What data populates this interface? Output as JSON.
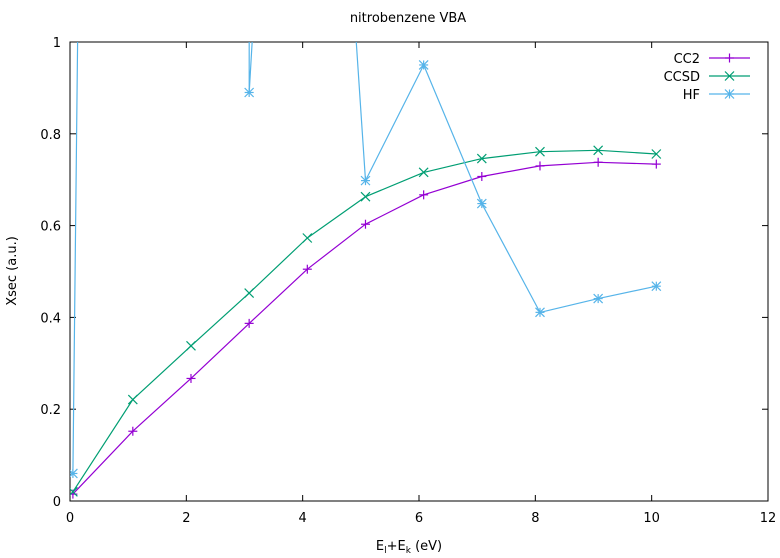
{
  "chart_data": {
    "type": "line",
    "title": "nitrobenzene VBA",
    "xlabel": {
      "base": "E",
      "sub1": "l",
      "mid": "+E",
      "sub2": "k",
      "unit": " (eV)"
    },
    "ylabel": "Xsec (a.u.)",
    "xlim": [
      0,
      12
    ],
    "ylim": [
      0,
      1
    ],
    "xticks": [
      "0",
      "2",
      "4",
      "6",
      "8",
      "10",
      "12"
    ],
    "yticks": [
      "0",
      "0.2",
      "0.4",
      "0.6",
      "0.8",
      "1"
    ],
    "grid": false,
    "legend_position": "top-right",
    "series": [
      {
        "name": "CC2",
        "color": "#9400d3",
        "marker": "plus",
        "x": [
          0.05,
          1.08,
          2.08,
          3.08,
          4.08,
          5.08,
          6.08,
          7.08,
          8.08,
          9.08,
          10.08
        ],
        "y": [
          0.015,
          0.152,
          0.267,
          0.387,
          0.505,
          0.603,
          0.667,
          0.707,
          0.73,
          0.738,
          0.734
        ]
      },
      {
        "name": "CCSD",
        "color": "#009e73",
        "marker": "cross",
        "x": [
          0.05,
          1.08,
          2.08,
          3.08,
          4.08,
          5.08,
          6.08,
          7.08,
          8.08,
          9.08,
          10.08
        ],
        "y": [
          0.02,
          0.221,
          0.338,
          0.453,
          0.573,
          0.663,
          0.716,
          0.746,
          0.761,
          0.764,
          0.756
        ]
      },
      {
        "name": "HF",
        "color": "#56b4e9",
        "marker": "star",
        "x": [
          0.05,
          0.2,
          3.08,
          3.08,
          3.5,
          4.5,
          5.08,
          6.08,
          7.08,
          8.08,
          9.08,
          10.08
        ],
        "y": [
          0.06,
          1.8,
          1.8,
          0.89,
          1.8,
          1.8,
          0.698,
          0.95,
          0.648,
          0.411,
          0.441,
          0.468
        ],
        "marker_indices": [
          0,
          3,
          6,
          7,
          8,
          9,
          10,
          11
        ]
      }
    ]
  }
}
